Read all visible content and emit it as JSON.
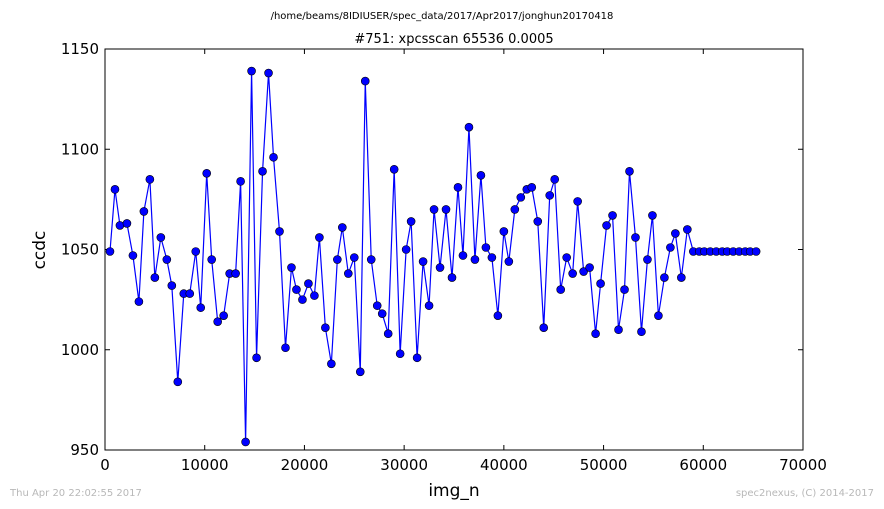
{
  "header": {
    "path": "/home/beams/8IDIUSER/spec_data/2017/Apr2017/jonghun20170418"
  },
  "footer": {
    "timestamp": "Thu Apr 20 22:02:55 2017",
    "credit": "spec2nexus, (C) 2014-2017"
  },
  "chart_data": {
    "type": "line",
    "title": "#751: xpcsscan 65536 0.0005",
    "xlabel": "img_n",
    "ylabel": "ccdc",
    "xlim": [
      0,
      70000
    ],
    "ylim": [
      950,
      1150
    ],
    "xticks": [
      0,
      10000,
      20000,
      30000,
      40000,
      50000,
      60000,
      70000
    ],
    "yticks": [
      950,
      1000,
      1050,
      1100,
      1150
    ],
    "grid": false,
    "line_color": "#0000ff",
    "marker_color": "#0000ff",
    "series": [
      {
        "x": [
          500,
          1000,
          1500,
          2200,
          2800,
          3400,
          3900,
          4500,
          5000,
          5600,
          6200,
          6700,
          7300,
          7900,
          8500,
          9100,
          9600,
          10200,
          10700,
          11300,
          11900,
          12500,
          13100,
          13600,
          14100,
          14700,
          15200,
          15800,
          16400,
          16900,
          17500,
          18100,
          18700,
          19200,
          19800,
          20400,
          21000,
          21500,
          22100,
          22700,
          23300,
          23800,
          24400,
          25000,
          25600,
          26100,
          26700,
          27300,
          27800,
          28400,
          29000,
          29600,
          30200,
          30700,
          31300,
          31900,
          32500,
          33000,
          33600,
          34200,
          34800,
          35400,
          35900,
          36500,
          37100,
          37700,
          38200,
          38800,
          39400,
          40000,
          40500,
          41100,
          41700,
          42300,
          42800,
          43400,
          44000,
          44600,
          45100,
          45700,
          46300,
          46900,
          47400,
          48000,
          48600,
          49200,
          49700,
          50300,
          50900,
          51500,
          52100,
          52600,
          53200,
          53800,
          54400,
          54900,
          55500,
          56100,
          56700,
          57200,
          57800,
          58400,
          59000,
          59600,
          60100,
          60700,
          61300,
          61900,
          62400,
          63000,
          63600,
          64200,
          64700,
          65300
        ],
        "y": [
          1049,
          1080,
          1062,
          1063,
          1047,
          1024,
          1069,
          1085,
          1036,
          1056,
          1045,
          1032,
          984,
          1028,
          1028,
          1049,
          1021,
          1088,
          1045,
          1014,
          1017,
          1038,
          1038,
          1084,
          954,
          1139,
          996,
          1089,
          1138,
          1096,
          1059,
          1001,
          1041,
          1030,
          1025,
          1033,
          1027,
          1056,
          1011,
          993,
          1045,
          1061,
          1038,
          1046,
          989,
          1134,
          1045,
          1022,
          1018,
          1008,
          1090,
          998,
          1050,
          1064,
          996,
          1044,
          1022,
          1070,
          1041,
          1070,
          1036,
          1081,
          1047,
          1111,
          1045,
          1087,
          1051,
          1046,
          1017,
          1059,
          1044,
          1070,
          1076,
          1080,
          1081,
          1064,
          1011,
          1077,
          1085,
          1030,
          1046,
          1038,
          1074,
          1039,
          1041,
          1008,
          1033,
          1062,
          1067,
          1010,
          1030,
          1089,
          1056,
          1009,
          1045,
          1067,
          1017,
          1036,
          1051,
          1058,
          1036,
          1060,
          1049,
          1049,
          1049,
          1049,
          1049,
          1049,
          1049,
          1049,
          1049,
          1049,
          1049,
          1049
        ]
      }
    ]
  }
}
